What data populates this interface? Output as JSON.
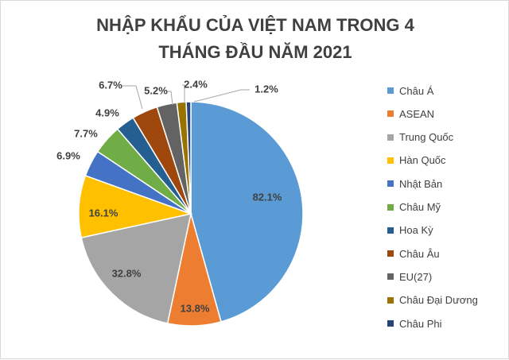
{
  "chart_data": {
    "type": "pie",
    "title_lines": [
      "NHẬP KHẨU CỦA VIỆT NAM TRONG 4",
      "THÁNG ĐẦU NĂM 2021"
    ],
    "legend_position": "right",
    "slices": [
      {
        "name": "Châu Á",
        "value": 82.1,
        "label": "82.1%",
        "color": "#5B9BD5"
      },
      {
        "name": "ASEAN",
        "value": 13.8,
        "label": "13.8%",
        "color": "#ED7D31"
      },
      {
        "name": "Trung Quốc",
        "value": 32.8,
        "label": "32.8%",
        "color": "#A5A5A5"
      },
      {
        "name": "Hàn Quốc",
        "value": 16.1,
        "label": "16.1%",
        "color": "#FFC000"
      },
      {
        "name": "Nhật Bản",
        "value": 6.9,
        "label": "6.9%",
        "color": "#4472C4"
      },
      {
        "name": "Châu Mỹ",
        "value": 7.7,
        "label": "7.7%",
        "color": "#70AD47"
      },
      {
        "name": "Hoa Kỳ",
        "value": 4.9,
        "label": "4.9%",
        "color": "#255E91"
      },
      {
        "name": "Châu Âu",
        "value": 6.7,
        "label": "6.7%",
        "color": "#9E480E"
      },
      {
        "name": "EU(27)",
        "value": 5.2,
        "label": "5.2%",
        "color": "#636363"
      },
      {
        "name": "Châu Đại Dương",
        "value": 2.4,
        "label": "2.4%",
        "color": "#997300"
      },
      {
        "name": "Châu Phi",
        "value": 1.2,
        "label": "1.2%",
        "color": "#264478"
      }
    ]
  }
}
